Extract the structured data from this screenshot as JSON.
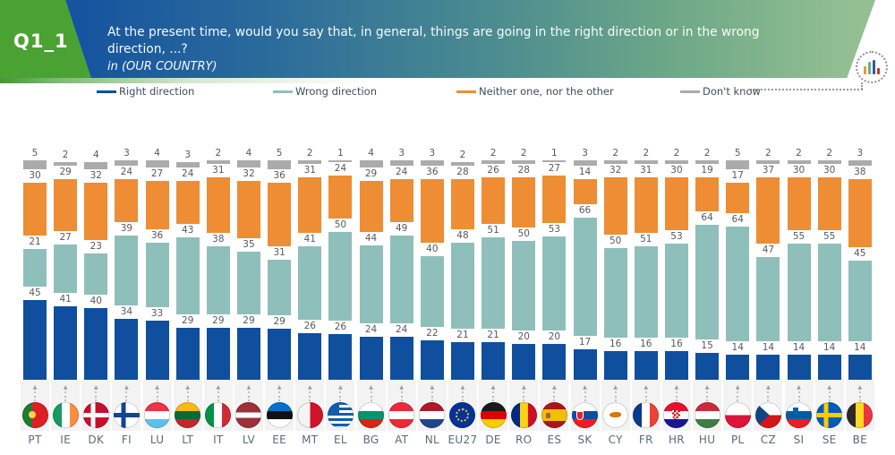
{
  "header": {
    "question_id": "Q1_1",
    "question_line1": "At the present time, would you say that, in general, things are going in the right direction or in the wrong direction, ...?",
    "question_line2": "in (OUR COUNTRY)",
    "accent_green": "#4aa233",
    "band_blue": "#16549f",
    "band_green": "#93bf92"
  },
  "icons": {
    "chart_icon_bars": [
      {
        "color": "#e09c3a",
        "height": 9
      },
      {
        "color": "#6fae8a",
        "height": 14
      },
      {
        "color": "#2a5ca8",
        "height": 16
      },
      {
        "color": "#c0392b",
        "height": 7
      }
    ]
  },
  "chart_data": {
    "type": "bar",
    "subtype": "stacked-percentage",
    "unit": "%",
    "stack_order_bottom_to_top": [
      "right_direction",
      "wrong_direction",
      "neither",
      "dont_know"
    ],
    "legend_position": "top",
    "legend": [
      {
        "key": "right_direction",
        "label": "Right direction",
        "color": "#0f4f9e"
      },
      {
        "key": "wrong_direction",
        "label": "Wrong direction",
        "color": "#8fbfbb"
      },
      {
        "key": "neither",
        "label": "Neither one, nor the other",
        "color": "#ee8d33"
      },
      {
        "key": "dont_know",
        "label": "Don't know",
        "color": "#ababab"
      }
    ],
    "categories": [
      "PT",
      "IE",
      "DK",
      "FI",
      "LU",
      "LT",
      "IT",
      "LV",
      "EE",
      "MT",
      "EL",
      "BG",
      "AT",
      "NL",
      "EU27",
      "DE",
      "RO",
      "ES",
      "SK",
      "CY",
      "FR",
      "HR",
      "HU",
      "PL",
      "CZ",
      "SI",
      "SE",
      "BE"
    ],
    "countries": [
      {
        "code": "PT",
        "right_direction": 45,
        "wrong_direction": 21,
        "neither": 30,
        "dont_know": 5
      },
      {
        "code": "IE",
        "right_direction": 41,
        "wrong_direction": 27,
        "neither": 29,
        "dont_know": 2
      },
      {
        "code": "DK",
        "right_direction": 40,
        "wrong_direction": 23,
        "neither": 32,
        "dont_know": 4
      },
      {
        "code": "FI",
        "right_direction": 34,
        "wrong_direction": 39,
        "neither": 24,
        "dont_know": 3
      },
      {
        "code": "LU",
        "right_direction": 33,
        "wrong_direction": 36,
        "neither": 27,
        "dont_know": 4
      },
      {
        "code": "LT",
        "right_direction": 29,
        "wrong_direction": 43,
        "neither": 24,
        "dont_know": 3
      },
      {
        "code": "IT",
        "right_direction": 29,
        "wrong_direction": 38,
        "neither": 31,
        "dont_know": 2
      },
      {
        "code": "LV",
        "right_direction": 29,
        "wrong_direction": 35,
        "neither": 32,
        "dont_know": 4
      },
      {
        "code": "EE",
        "right_direction": 29,
        "wrong_direction": 31,
        "neither": 36,
        "dont_know": 5
      },
      {
        "code": "MT",
        "right_direction": 26,
        "wrong_direction": 41,
        "neither": 31,
        "dont_know": 2
      },
      {
        "code": "EL",
        "right_direction": 26,
        "wrong_direction": 50,
        "neither": 24,
        "dont_know": 1
      },
      {
        "code": "BG",
        "right_direction": 24,
        "wrong_direction": 44,
        "neither": 29,
        "dont_know": 4
      },
      {
        "code": "AT",
        "right_direction": 24,
        "wrong_direction": 49,
        "neither": 24,
        "dont_know": 3
      },
      {
        "code": "NL",
        "right_direction": 22,
        "wrong_direction": 40,
        "neither": 36,
        "dont_know": 3
      },
      {
        "code": "EU27",
        "right_direction": 21,
        "wrong_direction": 48,
        "neither": 28,
        "dont_know": 2
      },
      {
        "code": "DE",
        "right_direction": 21,
        "wrong_direction": 51,
        "neither": 26,
        "dont_know": 2
      },
      {
        "code": "RO",
        "right_direction": 20,
        "wrong_direction": 50,
        "neither": 28,
        "dont_know": 2
      },
      {
        "code": "ES",
        "right_direction": 20,
        "wrong_direction": 53,
        "neither": 27,
        "dont_know": 1
      },
      {
        "code": "SK",
        "right_direction": 17,
        "wrong_direction": 66,
        "neither": 14,
        "dont_know": 3
      },
      {
        "code": "CY",
        "right_direction": 16,
        "wrong_direction": 50,
        "neither": 32,
        "dont_know": 2
      },
      {
        "code": "FR",
        "right_direction": 16,
        "wrong_direction": 51,
        "neither": 31,
        "dont_know": 2
      },
      {
        "code": "HR",
        "right_direction": 16,
        "wrong_direction": 53,
        "neither": 30,
        "dont_know": 2
      },
      {
        "code": "HU",
        "right_direction": 15,
        "wrong_direction": 64,
        "neither": 19,
        "dont_know": 2
      },
      {
        "code": "PL",
        "right_direction": 14,
        "wrong_direction": 64,
        "neither": 17,
        "dont_know": 5
      },
      {
        "code": "CZ",
        "right_direction": 14,
        "wrong_direction": 47,
        "neither": 37,
        "dont_know": 2
      },
      {
        "code": "SI",
        "right_direction": 14,
        "wrong_direction": 55,
        "neither": 30,
        "dont_know": 2
      },
      {
        "code": "SE",
        "right_direction": 14,
        "wrong_direction": 55,
        "neither": 30,
        "dont_know": 2
      },
      {
        "code": "BE",
        "right_direction": 14,
        "wrong_direction": 45,
        "neither": 38,
        "dont_know": 3
      }
    ]
  }
}
